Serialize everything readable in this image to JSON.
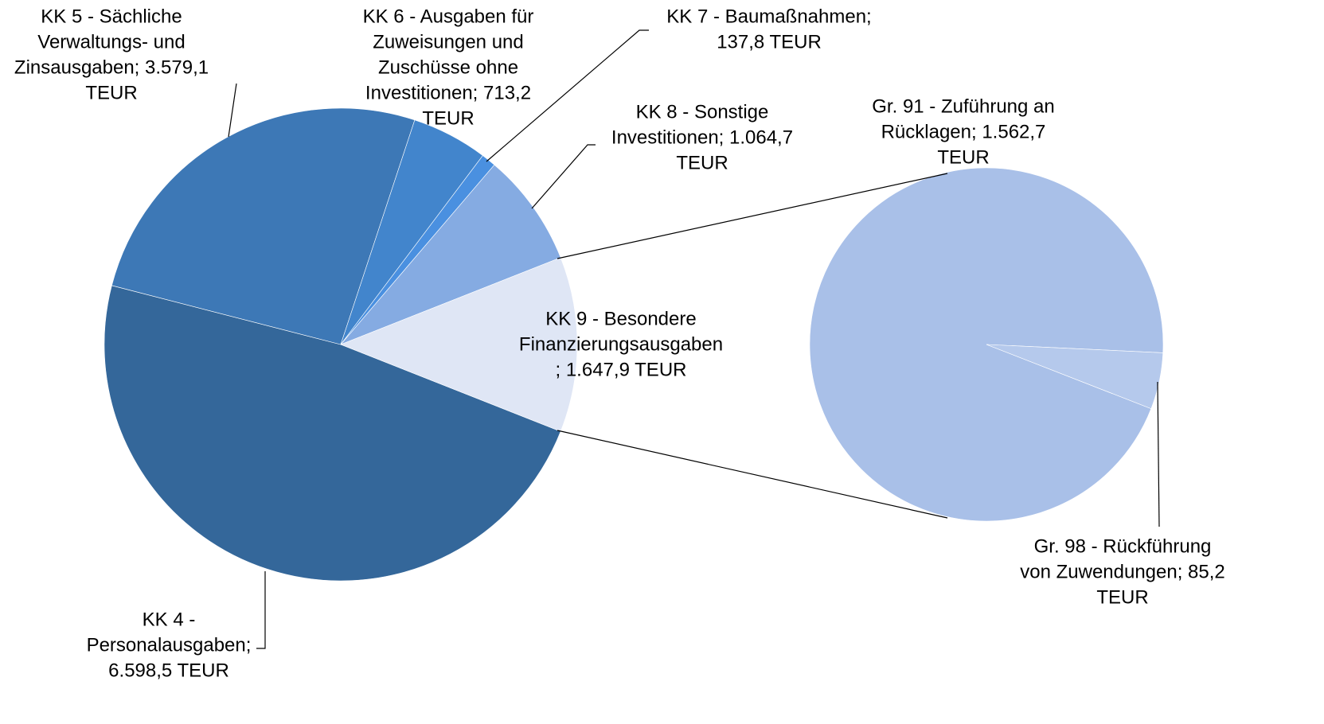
{
  "chart_data": [
    {
      "type": "pie",
      "values": [
        6598.5,
        3579.1,
        713.2,
        137.8,
        1064.7,
        1647.9
      ],
      "value_labels": [
        [
          "KK 4 -",
          "Personalausgaben;",
          "6.598,5 TEUR"
        ],
        [
          "KK 5 - Sächliche",
          "Verwaltungs- und",
          "Zinsausgaben; 3.579,1",
          "TEUR"
        ],
        [
          "KK 6 - Ausgaben für",
          "Zuweisungen und",
          "Zuschüsse ohne",
          "Investitionen; 713,2",
          "TEUR"
        ],
        [
          "KK 7 - Baumaßnahmen;",
          "137,8 TEUR"
        ],
        [
          "KK 8 - Sonstige",
          "Investitionen; 1.064,7",
          "TEUR"
        ],
        [
          "KK 9 - Besondere",
          "Finanzierungsausgaben",
          "; 1.647,9 TEUR"
        ]
      ],
      "colors": [
        "#34679a",
        "#3d78b6",
        "#4285cc",
        "#4a90e0",
        "#85abe2",
        "#dfe6f5"
      ]
    },
    {
      "type": "pie",
      "values": [
        1562.7,
        85.2
      ],
      "value_labels": [
        [
          "Gr. 91 - Zuführung an",
          "Rücklagen; 1.562,7",
          "TEUR"
        ],
        [
          "Gr. 98 - Rückführung",
          "von Zuwendungen; 85,2",
          "TEUR"
        ]
      ],
      "colors": [
        "#a9c0e8",
        "#b5c9ec"
      ]
    }
  ]
}
